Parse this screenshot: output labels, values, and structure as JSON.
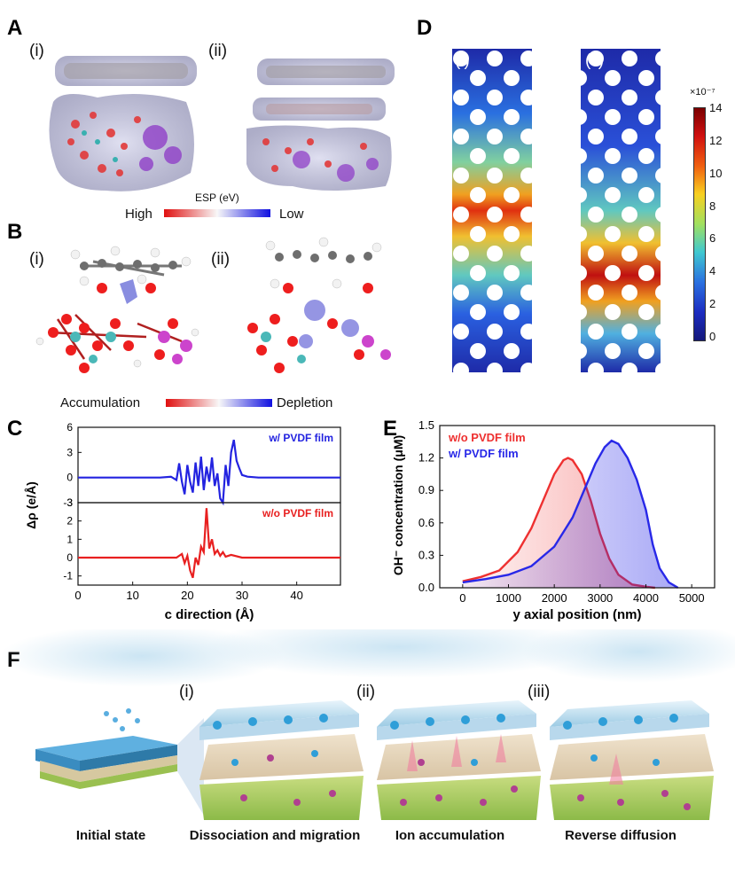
{
  "panels": {
    "A": {
      "letter": "A",
      "sub_i": "(i)",
      "sub_ii": "(ii)",
      "scale_title": "ESP (eV)",
      "scale_left": "High",
      "scale_right": "Low"
    },
    "B": {
      "letter": "B",
      "sub_i": "(i)",
      "sub_ii": "(ii)",
      "scale_left": "Accumulation",
      "scale_right": "Depletion"
    },
    "C": {
      "letter": "C"
    },
    "D": {
      "letter": "D",
      "sub_i": "(i)",
      "sub_ii": "(ii)",
      "colorbar_exponent": "×10⁻⁷",
      "colorbar_ticks": [
        "14",
        "12",
        "10",
        "8",
        "6",
        "4",
        "2",
        "0"
      ]
    },
    "E": {
      "letter": "E"
    },
    "F": {
      "letter": "F",
      "sub_i": "(i)",
      "sub_ii": "(ii)",
      "sub_iii": "(iii)",
      "captions": [
        "Initial state",
        "Dissociation and migration",
        "Ion accumulation",
        "Reverse diffusion"
      ]
    }
  },
  "chart_data": [
    {
      "id": "C",
      "type": "line",
      "xlabel": "c direction (Å)",
      "ylabel": "Δρ (e/Å)",
      "xlim": [
        0,
        48
      ],
      "xticks": [
        "0",
        "10",
        "20",
        "30",
        "40"
      ],
      "subplots": [
        {
          "name": "w/ PVDF film",
          "color": "#2323e0",
          "ylim": [
            -3,
            6
          ],
          "yticks": [
            "6",
            "3",
            "0",
            "-3"
          ],
          "x": [
            0,
            5,
            10,
            15,
            17,
            18,
            18.5,
            19,
            19.5,
            20,
            20.5,
            21,
            21.5,
            22,
            22.5,
            23,
            23.5,
            24,
            24.5,
            25,
            25.5,
            26,
            26.5,
            27,
            27.5,
            28,
            28.5,
            29,
            29.5,
            30,
            31,
            33,
            40,
            48
          ],
          "y": [
            0,
            0,
            0,
            0,
            0.1,
            -0.3,
            1.7,
            -0.5,
            -2,
            1.5,
            -0.5,
            -1.8,
            1.8,
            -1,
            2.5,
            -1.5,
            1.3,
            -0.5,
            2.4,
            -1,
            0.5,
            -2.5,
            -3,
            1.5,
            -1,
            3,
            4.5,
            2,
            1.1,
            0.3,
            0.1,
            0,
            0,
            0
          ]
        },
        {
          "name": "w/o PVDF film",
          "color": "#e82020",
          "ylim": [
            -1.5,
            3
          ],
          "yticks": [
            "3",
            "2",
            "1",
            "0",
            "-1"
          ],
          "x": [
            0,
            5,
            10,
            15,
            18,
            19,
            19.5,
            20,
            20.5,
            21,
            21.5,
            22,
            22.5,
            23,
            23.5,
            24,
            24.5,
            25,
            25.5,
            26,
            26.5,
            27,
            28,
            30,
            35,
            40,
            48
          ],
          "y": [
            0,
            0,
            0,
            0,
            0,
            0.2,
            -0.3,
            0.1,
            -0.7,
            -1.1,
            0,
            -0.4,
            0.6,
            0.3,
            2.7,
            0.5,
            1,
            0.2,
            0.4,
            0.1,
            0.3,
            0.05,
            0.15,
            0,
            0,
            0,
            0
          ]
        }
      ]
    },
    {
      "id": "E",
      "type": "area",
      "xlabel": "y axial position (nm)",
      "ylabel": "OH⁻ concentration (μM)",
      "xlim": [
        -500,
        5500
      ],
      "ylim": [
        0,
        1.5
      ],
      "xticks": [
        "0",
        "1000",
        "2000",
        "3000",
        "4000",
        "5000"
      ],
      "yticks": [
        "0.0",
        "0.3",
        "0.6",
        "0.9",
        "1.2",
        "1.5"
      ],
      "series": [
        {
          "name": "w/o PVDF film",
          "color": "#ee3030",
          "x": [
            0,
            400,
            800,
            1200,
            1500,
            1800,
            2000,
            2200,
            2300,
            2400,
            2600,
            2800,
            3000,
            3200,
            3400,
            3700,
            4000,
            4200
          ],
          "y": [
            0.06,
            0.1,
            0.16,
            0.33,
            0.55,
            0.85,
            1.05,
            1.18,
            1.2,
            1.18,
            1.05,
            0.8,
            0.5,
            0.27,
            0.12,
            0.03,
            0.01,
            0
          ]
        },
        {
          "name": "w/   PVDF film",
          "color": "#2828e8",
          "x": [
            0,
            500,
            1000,
            1500,
            2000,
            2400,
            2700,
            2900,
            3100,
            3250,
            3400,
            3600,
            3800,
            4000,
            4150,
            4300,
            4500,
            4700
          ],
          "y": [
            0.05,
            0.08,
            0.12,
            0.2,
            0.38,
            0.65,
            0.95,
            1.15,
            1.3,
            1.36,
            1.33,
            1.2,
            1.0,
            0.72,
            0.4,
            0.18,
            0.05,
            0
          ]
        }
      ]
    }
  ]
}
